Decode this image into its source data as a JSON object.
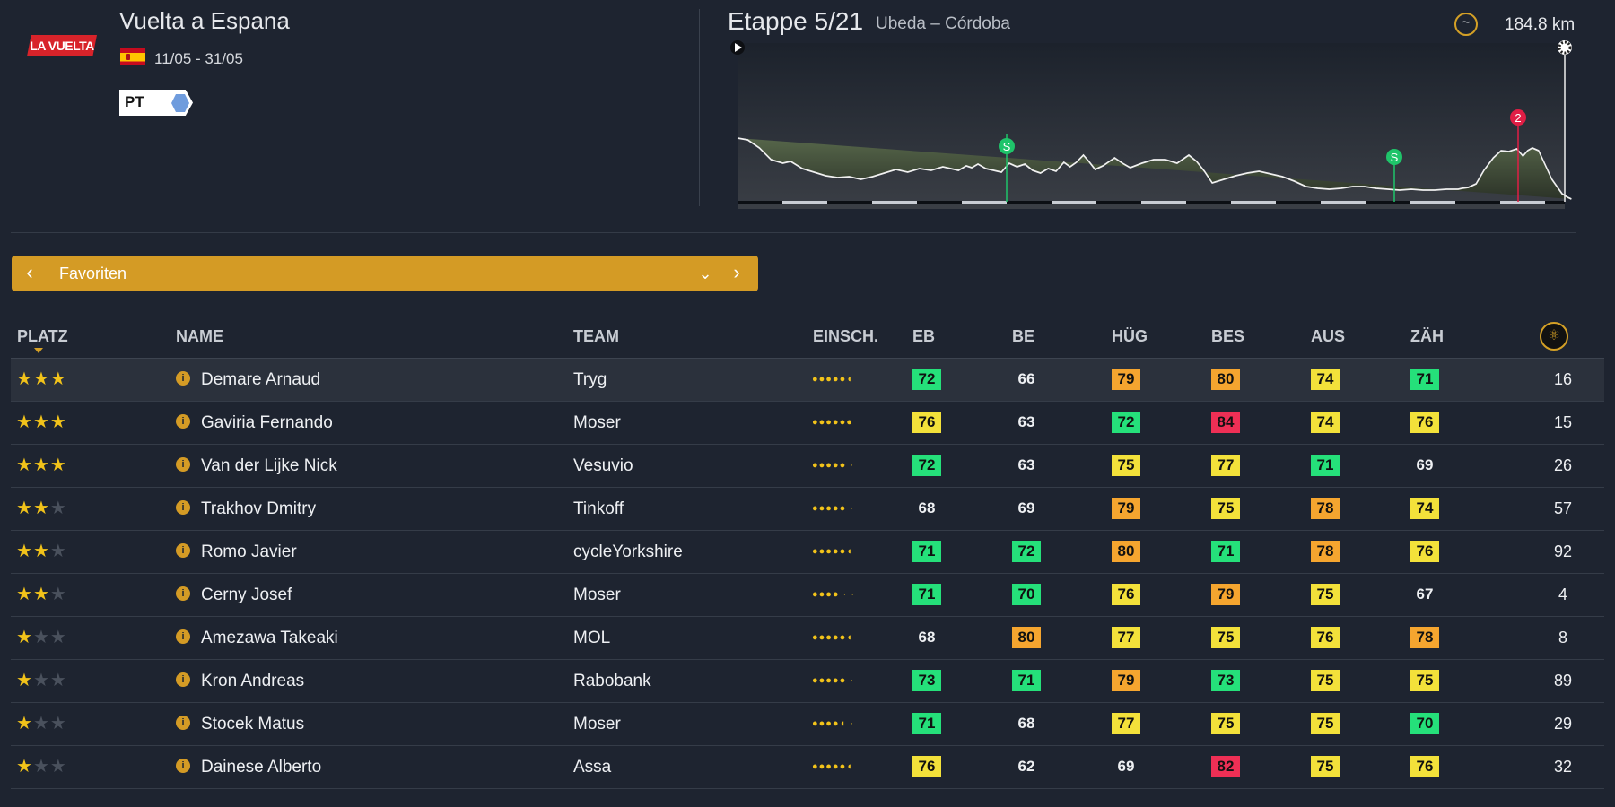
{
  "race": {
    "logo_text": "LA VUELTA",
    "title": "Vuelta a Espana",
    "dates": "11/05 - 31/05",
    "tag": "PT"
  },
  "stage": {
    "title": "Etappe 5/21",
    "route": "Ubeda – Córdoba",
    "distance": "184.8 km",
    "markers": [
      {
        "label": "S",
        "color": "#1fc46a"
      },
      {
        "label": "S",
        "color": "#1fc46a"
      },
      {
        "label": "2",
        "color": "#e01e45"
      }
    ]
  },
  "selector": {
    "label": "Favoriten"
  },
  "columns": {
    "platz": "PLATZ",
    "name": "NAME",
    "team": "TEAM",
    "einsch": "EINSCH.",
    "eb": "EB",
    "be": "BE",
    "hug": "HÜG",
    "bes": "BES",
    "aus": "AUS",
    "zah": "ZÄH"
  },
  "colors": {
    "green": "#25e07a",
    "yellow": "#f3e13a",
    "orange": "#f5a52f",
    "red": "#ee2f55",
    "accent": "#d49b25"
  },
  "riders": [
    {
      "stars": 3,
      "name": "Demare Arnaud",
      "team": "Tryg",
      "form": "●●●●●◖",
      "stats": [
        [
          72,
          "green"
        ],
        [
          66,
          "none"
        ],
        [
          79,
          "orange"
        ],
        [
          80,
          "orange"
        ],
        [
          74,
          "yellow"
        ],
        [
          71,
          "green"
        ]
      ],
      "count": 16
    },
    {
      "stars": 3,
      "name": "Gaviria Fernando",
      "team": "Moser",
      "form": "●●●●●●",
      "stats": [
        [
          76,
          "yellow"
        ],
        [
          63,
          "none"
        ],
        [
          72,
          "green"
        ],
        [
          84,
          "red"
        ],
        [
          74,
          "yellow"
        ],
        [
          76,
          "yellow"
        ]
      ],
      "count": 15
    },
    {
      "stars": 3,
      "name": "Van der Lijke Nick",
      "team": "Vesuvio",
      "form": "●●●●● ·",
      "stats": [
        [
          72,
          "green"
        ],
        [
          63,
          "none"
        ],
        [
          75,
          "yellow"
        ],
        [
          77,
          "yellow"
        ],
        [
          71,
          "green"
        ],
        [
          69,
          "none"
        ]
      ],
      "count": 26
    },
    {
      "stars": 2,
      "name": "Trakhov Dmitry",
      "team": "Tinkoff",
      "form": "●●●●● ·",
      "stats": [
        [
          68,
          "none"
        ],
        [
          69,
          "none"
        ],
        [
          79,
          "orange"
        ],
        [
          75,
          "yellow"
        ],
        [
          78,
          "orange"
        ],
        [
          74,
          "yellow"
        ]
      ],
      "count": 57
    },
    {
      "stars": 2,
      "name": "Romo Javier",
      "team": "cycleYorkshire",
      "form": "●●●●●◖",
      "stats": [
        [
          71,
          "green"
        ],
        [
          72,
          "green"
        ],
        [
          80,
          "orange"
        ],
        [
          71,
          "green"
        ],
        [
          78,
          "orange"
        ],
        [
          76,
          "yellow"
        ]
      ],
      "count": 92
    },
    {
      "stars": 2,
      "name": "Cerny Josef",
      "team": "Moser",
      "form": "●●●● · ·",
      "stats": [
        [
          71,
          "green"
        ],
        [
          70,
          "green"
        ],
        [
          76,
          "yellow"
        ],
        [
          79,
          "orange"
        ],
        [
          75,
          "yellow"
        ],
        [
          67,
          "none"
        ]
      ],
      "count": 4
    },
    {
      "stars": 1,
      "name": "Amezawa Takeaki",
      "team": "MOL",
      "form": "●●●●●◖",
      "stats": [
        [
          68,
          "none"
        ],
        [
          80,
          "orange"
        ],
        [
          77,
          "yellow"
        ],
        [
          75,
          "yellow"
        ],
        [
          76,
          "yellow"
        ],
        [
          78,
          "orange"
        ]
      ],
      "count": 8
    },
    {
      "stars": 1,
      "name": "Kron Andreas",
      "team": "Rabobank",
      "form": "●●●●● ·",
      "stats": [
        [
          73,
          "green"
        ],
        [
          71,
          "green"
        ],
        [
          79,
          "orange"
        ],
        [
          73,
          "green"
        ],
        [
          75,
          "yellow"
        ],
        [
          75,
          "yellow"
        ]
      ],
      "count": 89
    },
    {
      "stars": 1,
      "name": "Stocek Matus",
      "team": "Moser",
      "form": "●●●●◖ ·",
      "stats": [
        [
          71,
          "green"
        ],
        [
          68,
          "none"
        ],
        [
          77,
          "yellow"
        ],
        [
          75,
          "yellow"
        ],
        [
          75,
          "yellow"
        ],
        [
          70,
          "green"
        ]
      ],
      "count": 29
    },
    {
      "stars": 1,
      "name": "Dainese Alberto",
      "team": "Assa",
      "form": "●●●●●◖",
      "stats": [
        [
          76,
          "yellow"
        ],
        [
          62,
          "none"
        ],
        [
          69,
          "none"
        ],
        [
          82,
          "red"
        ],
        [
          75,
          "yellow"
        ],
        [
          76,
          "yellow"
        ]
      ],
      "count": 32
    }
  ]
}
